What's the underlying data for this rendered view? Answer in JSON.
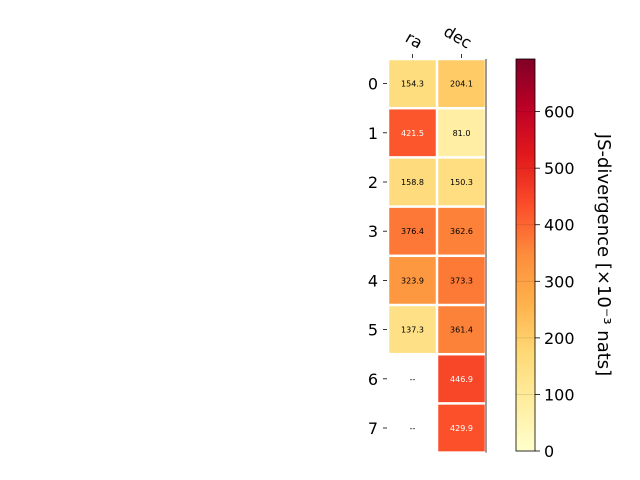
{
  "chart_data": {
    "type": "heatmap",
    "columns": [
      "ra",
      "dec"
    ],
    "rows": [
      "0",
      "1",
      "2",
      "3",
      "4",
      "5",
      "6",
      "7"
    ],
    "values": [
      [
        154.3,
        204.1
      ],
      [
        421.5,
        81.0
      ],
      [
        158.8,
        150.3
      ],
      [
        376.4,
        362.6
      ],
      [
        323.9,
        373.3
      ],
      [
        137.3,
        361.4
      ],
      [
        null,
        446.9
      ],
      [
        null,
        429.9
      ]
    ],
    "cell_labels": [
      [
        "154.3",
        "204.1"
      ],
      [
        "421.5",
        "81.0"
      ],
      [
        "158.8",
        "150.3"
      ],
      [
        "376.4",
        "362.6"
      ],
      [
        "323.9",
        "373.3"
      ],
      [
        "137.3",
        "361.4"
      ],
      [
        "--",
        "446.9"
      ],
      [
        "--",
        "429.9"
      ]
    ],
    "colorbar": {
      "label": "JS-divergence [×10⁻³ nats]",
      "range": [
        0,
        693
      ],
      "ticks": [
        0,
        100,
        200,
        300,
        400,
        500,
        600
      ],
      "colormap": "YlOrRd"
    }
  }
}
